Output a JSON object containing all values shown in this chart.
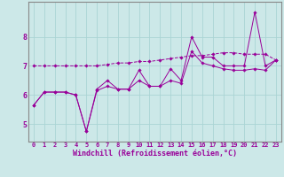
{
  "xlabel": "Windchill (Refroidissement éolien,°C)",
  "background_color": "#cce8e8",
  "line_color": "#990099",
  "grid_color": "#aad4d4",
  "spine_color": "#888888",
  "hours": [
    0,
    1,
    2,
    3,
    4,
    5,
    6,
    7,
    8,
    9,
    10,
    11,
    12,
    13,
    14,
    15,
    16,
    17,
    18,
    19,
    20,
    21,
    22,
    23
  ],
  "line1": [
    5.65,
    6.1,
    6.1,
    6.1,
    6.0,
    4.75,
    6.2,
    6.5,
    6.2,
    6.2,
    6.85,
    6.3,
    6.3,
    6.9,
    6.5,
    8.0,
    7.3,
    7.3,
    7.0,
    7.0,
    7.0,
    8.85,
    7.0,
    7.2
  ],
  "line2": [
    7.0,
    7.0,
    7.0,
    7.0,
    7.0,
    7.0,
    7.0,
    7.05,
    7.1,
    7.1,
    7.15,
    7.15,
    7.2,
    7.25,
    7.3,
    7.35,
    7.35,
    7.4,
    7.45,
    7.45,
    7.4,
    7.4,
    7.4,
    7.2
  ],
  "line3": [
    5.65,
    6.1,
    6.1,
    6.1,
    6.0,
    4.75,
    6.15,
    6.3,
    6.2,
    6.2,
    6.5,
    6.3,
    6.3,
    6.5,
    6.4,
    7.5,
    7.1,
    7.0,
    6.9,
    6.85,
    6.85,
    6.9,
    6.85,
    7.2
  ],
  "ylim": [
    4.4,
    9.2
  ],
  "yticks": [
    5,
    6,
    7,
    8
  ],
  "xlabel_fontsize": 6.0,
  "tick_fontsize": 5.0
}
